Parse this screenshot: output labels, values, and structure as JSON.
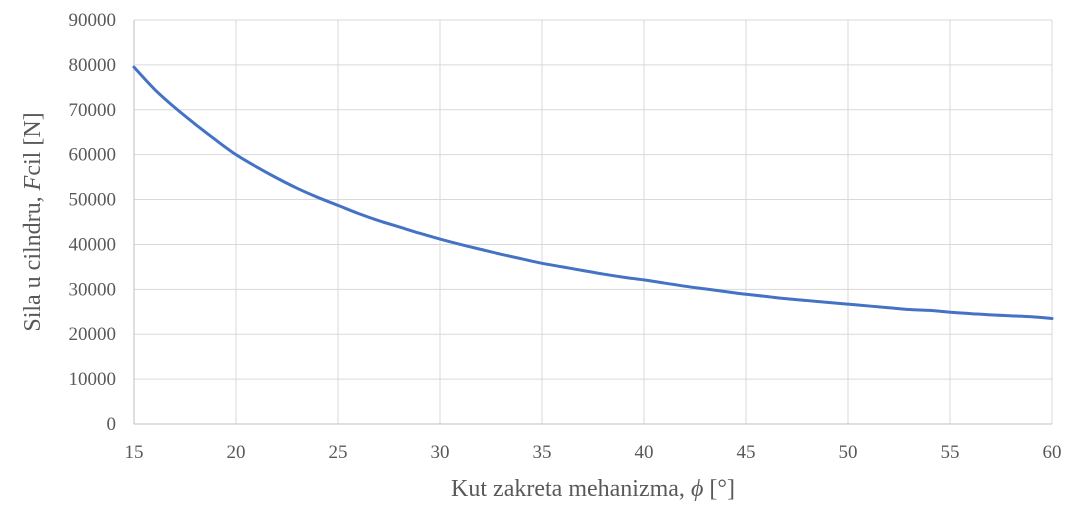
{
  "chart_data": {
    "type": "line",
    "title": "",
    "xlabel": {
      "prefix": "Kut zakreta mehanizma, ",
      "symbol": "ϕ",
      "suffix": " [°]"
    },
    "ylabel": {
      "prefix": "Sila u cilndru, ",
      "symbol": "F",
      "suffix": "cil [N]"
    },
    "xlim": [
      15,
      60
    ],
    "ylim": [
      0,
      90000
    ],
    "x_ticks": [
      15,
      20,
      25,
      30,
      35,
      40,
      45,
      50,
      55,
      60
    ],
    "y_ticks": [
      0,
      10000,
      20000,
      30000,
      40000,
      50000,
      60000,
      70000,
      80000,
      90000
    ],
    "grid": true,
    "legend": "none",
    "series": [
      {
        "color": "#4472c4",
        "x": [
          15,
          16,
          17,
          18,
          19,
          20,
          21,
          22,
          23,
          24,
          25,
          26,
          27,
          28,
          29,
          30,
          31,
          32,
          33,
          34,
          35,
          36,
          37,
          38,
          39,
          40,
          41,
          42,
          43,
          44,
          45,
          46,
          47,
          48,
          49,
          50,
          51,
          52,
          53,
          54,
          55,
          56,
          57,
          58,
          59,
          60
        ],
        "y": [
          79500,
          74600,
          70500,
          66800,
          63300,
          60000,
          57300,
          54800,
          52500,
          50500,
          48700,
          46900,
          45300,
          43900,
          42500,
          41200,
          40000,
          38900,
          37800,
          36800,
          35800,
          35000,
          34200,
          33400,
          32700,
          32100,
          31400,
          30700,
          30100,
          29500,
          28900,
          28400,
          27900,
          27500,
          27100,
          26700,
          26300,
          25900,
          25500,
          25300,
          24900,
          24600,
          24300,
          24100,
          23900,
          23500
        ]
      }
    ]
  }
}
